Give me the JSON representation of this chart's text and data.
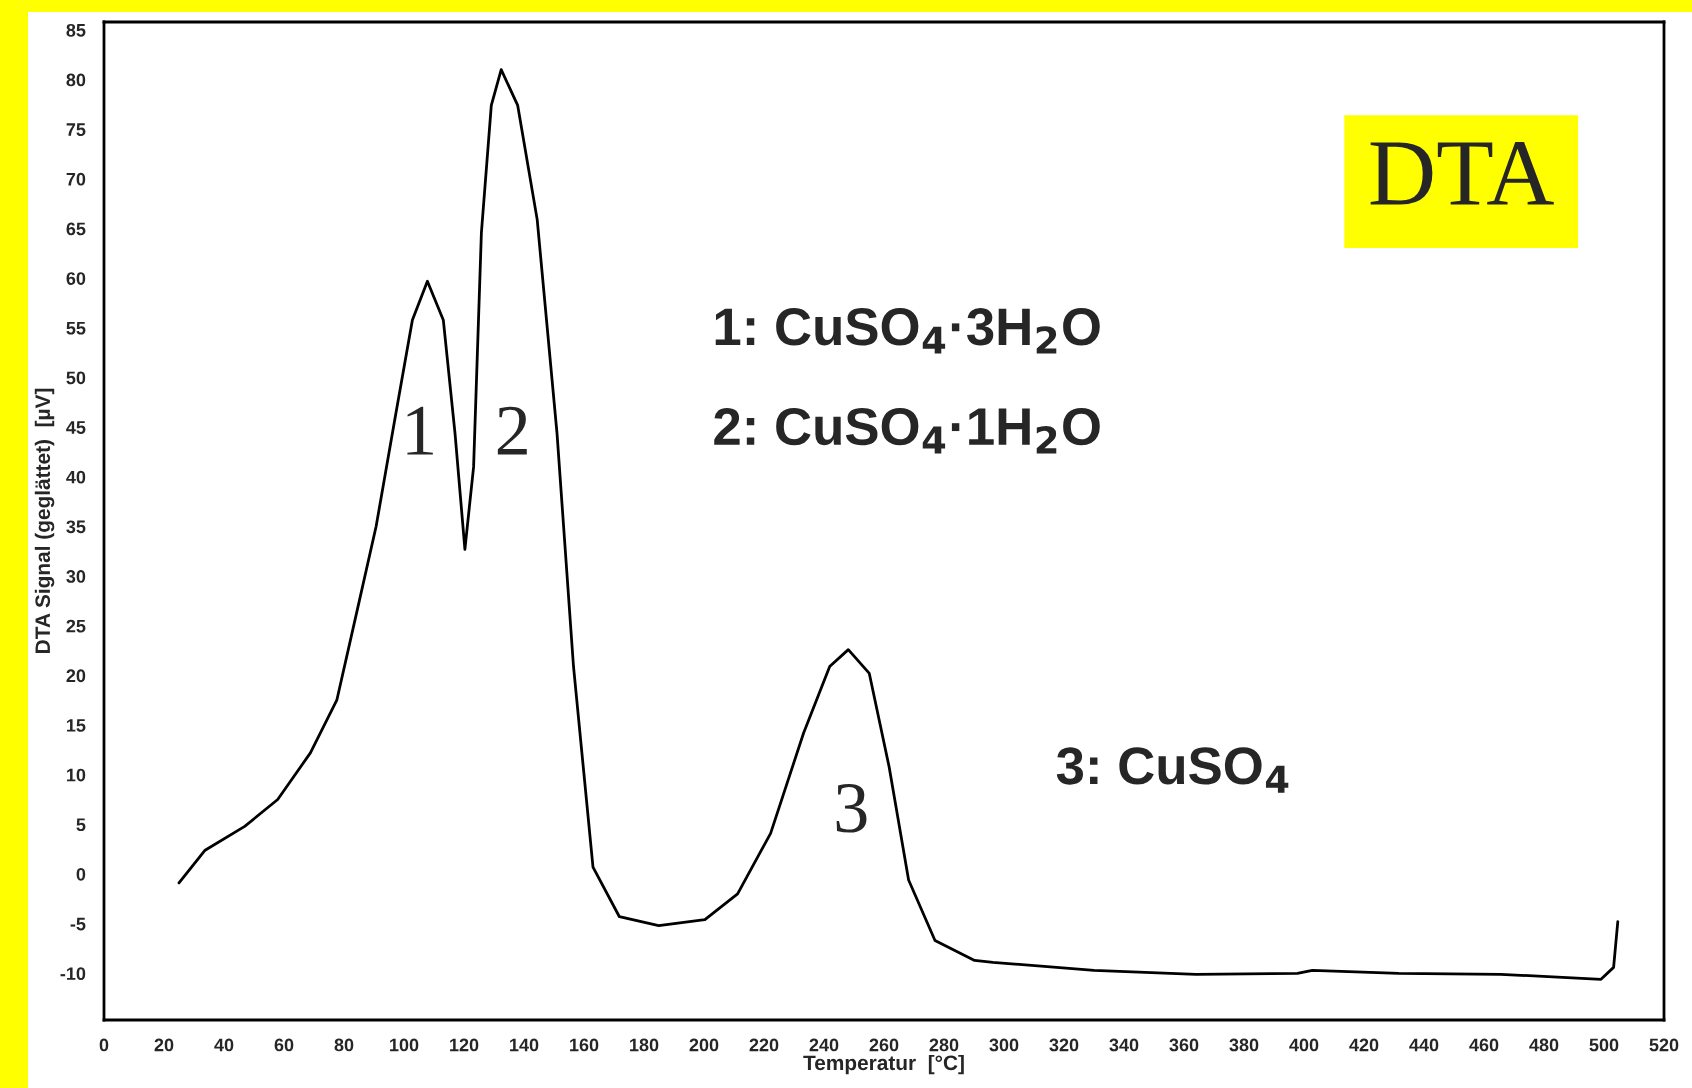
{
  "chart_data": {
    "type": "line",
    "xlabel": "Temperatur  [°C]",
    "ylabel": "DTA Signal (geglättet)  [µV]",
    "x": [
      25,
      33.7,
      46.9,
      57.9,
      68.8,
      77.6,
      84.2,
      90.7,
      97.3,
      102.8,
      107.8,
      113.1,
      117,
      120.3,
      123.2,
      125.8,
      129.1,
      132.4,
      137.9,
      144.4,
      151,
      156.5,
      163,
      171.8,
      184.9,
      200.3,
      211.2,
      222.2,
      233.2,
      241.9,
      248.1,
      255.1,
      261.7,
      268.2,
      277,
      290.2,
      296.3,
      330,
      364,
      397.8,
      402.8,
      431.6,
      465.5,
      499,
      503.2,
      504.6
    ],
    "series": [
      {
        "color": "#000000",
        "values": [
          -0.9,
          2.4,
          4.8,
          7.5,
          12.2,
          17.5,
          26.3,
          35,
          46.4,
          55.8,
          59.7,
          55.8,
          44.4,
          32.7,
          41,
          64.6,
          77.4,
          81,
          77.4,
          65.9,
          44.4,
          20.9,
          0.7,
          -4.3,
          -5.2,
          -4.6,
          -2,
          4.1,
          14.2,
          20.9,
          22.6,
          20.2,
          10.8,
          -0.6,
          -6.7,
          -8.7,
          -8.9,
          -9.7,
          -10.1,
          -10,
          -9.7,
          -10,
          -10.1,
          -10.6,
          -9.4,
          -4.8
        ]
      }
    ],
    "xlim": [
      0,
      520
    ],
    "ylim": [
      -14.7,
      85.8
    ],
    "xticks": [
      0,
      20,
      40,
      60,
      80,
      100,
      120,
      140,
      160,
      180,
      200,
      220,
      240,
      260,
      280,
      300,
      320,
      340,
      360,
      380,
      400,
      420,
      440,
      460,
      480,
      500,
      520
    ],
    "yticks": [
      -10,
      -5,
      0,
      5,
      10,
      15,
      20,
      25,
      30,
      35,
      40,
      45,
      50,
      55,
      60,
      65,
      70,
      75,
      80,
      85
    ],
    "grid": false,
    "legend": false,
    "marker": "none",
    "line_style": "solid",
    "annotations": [
      "1",
      "2",
      "3",
      "1: CuSO$_{4}$·3H$_{2}$O",
      "2: CuSO$_{4}$·1H$_{2}$O",
      "3: CuSO$_{4}$",
      "DTA"
    ]
  }
}
